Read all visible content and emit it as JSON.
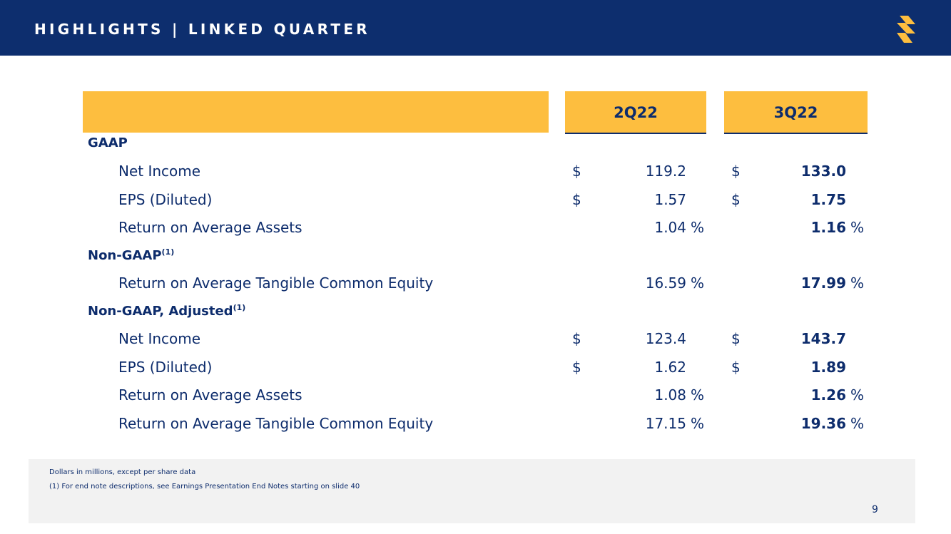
{
  "header": {
    "title": "HIGHLIGHTS | LINKED QUARTER",
    "logo_icon": "bank-s-logo-icon",
    "logo_color": "#fdbe3f"
  },
  "columns": [
    "2Q22",
    "3Q22"
  ],
  "sections": [
    {
      "title": "GAAP",
      "sup": "",
      "rows": [
        {
          "label": "Net Income",
          "currency": "$",
          "v1": "119.2",
          "v2": "133.0",
          "unit": ""
        },
        {
          "label": "EPS (Diluted)",
          "currency": "$",
          "v1": "1.57",
          "v2": "1.75",
          "unit": ""
        },
        {
          "label": "Return on Average Assets",
          "currency": "",
          "v1": "1.04",
          "v2": "1.16",
          "unit": "%"
        }
      ]
    },
    {
      "title": "Non-GAAP",
      "sup": "(1)",
      "rows": [
        {
          "label": "Return on Average Tangible Common Equity",
          "currency": "",
          "v1": "16.59",
          "v2": "17.99",
          "unit": "%"
        }
      ]
    },
    {
      "title": "Non-GAAP, Adjusted",
      "sup": "(1)",
      "rows": [
        {
          "label": "Net Income",
          "currency": "$",
          "v1": "123.4",
          "v2": "143.7",
          "unit": ""
        },
        {
          "label": "EPS (Diluted)",
          "currency": "$",
          "v1": "1.62",
          "v2": "1.89",
          "unit": ""
        },
        {
          "label": "Return on Average Assets",
          "currency": "",
          "v1": "1.08",
          "v2": "1.26",
          "unit": "%"
        },
        {
          "label": "Return on Average Tangible Common Equity",
          "currency": "",
          "v1": "17.15",
          "v2": "19.36",
          "unit": "%"
        }
      ]
    }
  ],
  "footnotes": [
    "Dollars in millions, except per share data",
    "(1)   For end note descriptions, see Earnings Presentation End Notes starting on slide 40"
  ],
  "page_number": "9"
}
